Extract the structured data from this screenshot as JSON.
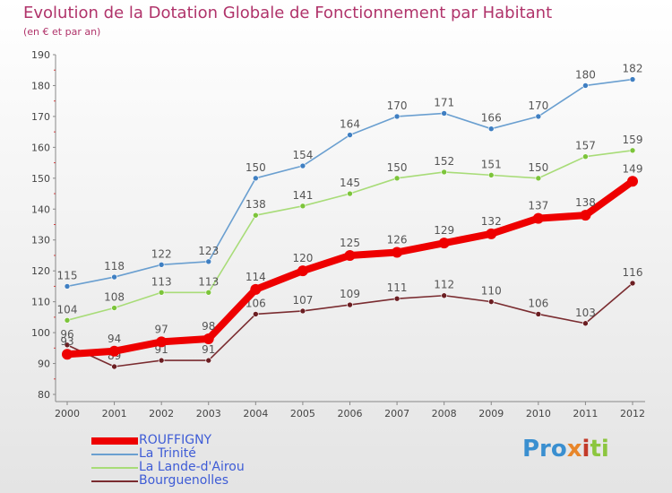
{
  "chart_data": {
    "type": "line",
    "title": "Evolution de la Dotation Globale de Fonctionnement par Habitant",
    "subtitle": "(en € et par an)",
    "xlabel": "",
    "ylabel": "",
    "categories": [
      "2000",
      "2001",
      "2002",
      "2003",
      "2004",
      "2005",
      "2006",
      "2007",
      "2008",
      "2009",
      "2010",
      "2011",
      "2012"
    ],
    "ylim": [
      80,
      190
    ],
    "yticks": [
      80,
      90,
      100,
      110,
      120,
      130,
      140,
      150,
      160,
      170,
      180,
      190
    ],
    "grid": false,
    "legend_position": "bottom-left",
    "series": [
      {
        "name": "La Trinité",
        "color": "#6a9fd0",
        "point_color": "#3f7fc2",
        "style": "thin",
        "values": [
          115,
          118,
          122,
          123,
          150,
          154,
          164,
          170,
          171,
          166,
          170,
          180,
          182
        ]
      },
      {
        "name": "La Lande-d'Airou",
        "color": "#a8dc78",
        "point_color": "#7cc43a",
        "style": "thin",
        "values": [
          104,
          108,
          113,
          113,
          138,
          141,
          145,
          150,
          152,
          151,
          150,
          157,
          159
        ]
      },
      {
        "name": "Bourguenolles",
        "color": "#7a2c30",
        "point_color": "#6b1e22",
        "style": "thin",
        "values": [
          96,
          89,
          91,
          91,
          106,
          107,
          109,
          111,
          112,
          110,
          106,
          103,
          116
        ]
      },
      {
        "name": "ROUFFIGNY",
        "color": "#ee0000",
        "point_color": "#ee0000",
        "style": "thick",
        "values": [
          93,
          94,
          97,
          98,
          114,
          120,
          125,
          126,
          129,
          132,
          137,
          138,
          149
        ]
      }
    ]
  },
  "legend": {
    "items": [
      {
        "label": "ROUFFIGNY",
        "color": "#ee0000",
        "width": 8
      },
      {
        "label": "La Trinité",
        "color": "#6a9fd0",
        "width": 2
      },
      {
        "label": "La Lande-d'Airou",
        "color": "#a8dc78",
        "width": 2
      },
      {
        "label": "Bourguenolles",
        "color": "#7a2c30",
        "width": 2
      }
    ]
  },
  "logo": {
    "p1": "Pro",
    "p2": "x",
    "p3": "i",
    "p4": "ti"
  }
}
